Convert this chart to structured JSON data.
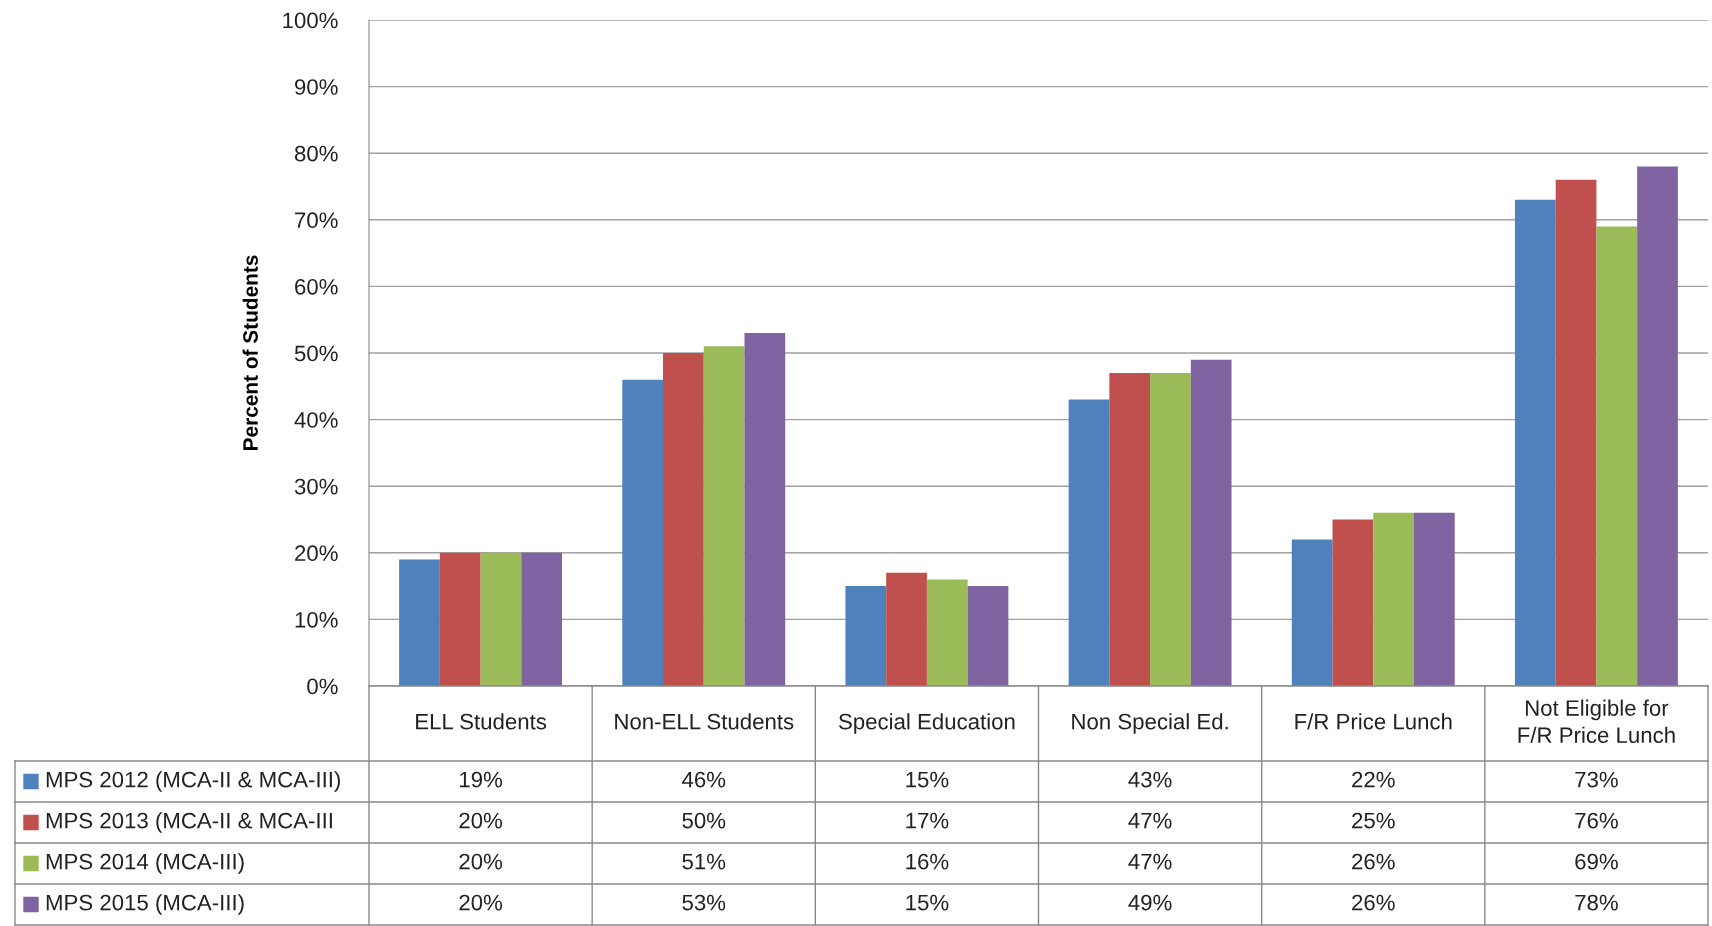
{
  "chart_data": {
    "type": "bar",
    "ylabel": "Percent of Students",
    "categories": [
      "ELL Students",
      "Non-ELL Students",
      "Special Education",
      "Non Special Ed.",
      "F/R Price Lunch",
      "Not Eligible for\nF/R Price Lunch"
    ],
    "series": [
      {
        "name": "MPS 2012 (MCA-II & MCA-III)",
        "color": "#4f81bd",
        "values": [
          19,
          46,
          15,
          43,
          22,
          73
        ],
        "value_labels": [
          "19%",
          "46%",
          "15%",
          "43%",
          "22%",
          "73%"
        ]
      },
      {
        "name": "MPS 2013 (MCA-II & MCA-III",
        "color": "#c0504d",
        "values": [
          20,
          50,
          17,
          47,
          25,
          76
        ],
        "value_labels": [
          "20%",
          "50%",
          "17%",
          "47%",
          "25%",
          "76%"
        ]
      },
      {
        "name": "MPS 2014 (MCA-III)",
        "color": "#9bbb59",
        "values": [
          20,
          51,
          16,
          47,
          26,
          69
        ],
        "value_labels": [
          "20%",
          "51%",
          "16%",
          "47%",
          "26%",
          "69%"
        ]
      },
      {
        "name": "MPS 2015 (MCA-III)",
        "color": "#8064a2",
        "values": [
          20,
          53,
          15,
          49,
          26,
          78
        ],
        "value_labels": [
          "20%",
          "53%",
          "15%",
          "49%",
          "26%",
          "78%"
        ]
      }
    ],
    "ylim": [
      0,
      100
    ],
    "yticks": [
      {
        "value": 0,
        "label": "0%"
      },
      {
        "value": 10,
        "label": "10%"
      },
      {
        "value": 20,
        "label": "20%"
      },
      {
        "value": 30,
        "label": "30%"
      },
      {
        "value": 40,
        "label": "40%"
      },
      {
        "value": 50,
        "label": "50%"
      },
      {
        "value": 60,
        "label": "60%"
      },
      {
        "value": 70,
        "label": "70%"
      },
      {
        "value": 80,
        "label": "80%"
      },
      {
        "value": 90,
        "label": "90%"
      },
      {
        "value": 100,
        "label": "100%"
      }
    ],
    "grid": "y",
    "legend": "bottom"
  }
}
